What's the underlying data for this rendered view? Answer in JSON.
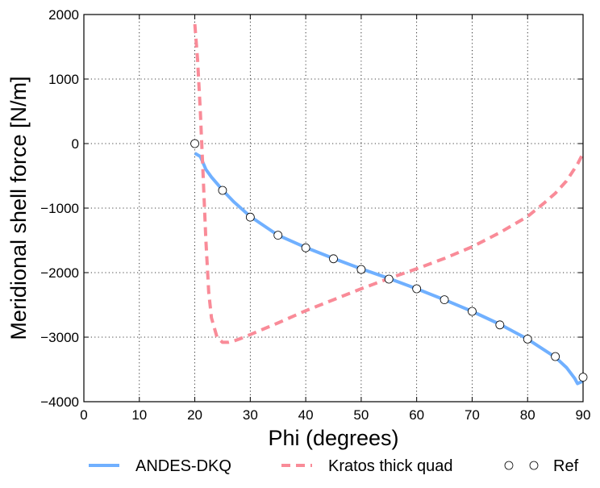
{
  "chart_data": {
    "type": "line",
    "xlabel": "Phi (degrees)",
    "ylabel": "Meridional shell force [N/m]",
    "xlim": [
      0,
      90
    ],
    "ylim": [
      -4000,
      2000
    ],
    "x_ticks": [
      0,
      10,
      20,
      30,
      40,
      50,
      60,
      70,
      80,
      90
    ],
    "y_ticks": [
      -4000,
      -3000,
      -2000,
      -1000,
      0,
      1000,
      2000
    ],
    "x_tick_labels": [
      "0",
      "10",
      "20",
      "30",
      "40",
      "50",
      "60",
      "70",
      "80",
      "90"
    ],
    "y_tick_labels": [
      "−4000",
      "−3000",
      "−2000",
      "−1000",
      "0",
      "1000",
      "2000"
    ],
    "grid": true,
    "legend_position": "bottom",
    "series": [
      {
        "name": "ANDES-DKQ",
        "style": "solid",
        "color": "#70b0ff",
        "x": [
          20,
          21,
          22,
          23,
          24,
          25,
          27,
          30,
          35,
          40,
          45,
          50,
          55,
          60,
          65,
          70,
          75,
          80,
          85,
          87,
          88.5,
          89,
          90
        ],
        "y": [
          -150,
          -200,
          -400,
          -520,
          -620,
          -720,
          -900,
          -1130,
          -1420,
          -1610,
          -1780,
          -1940,
          -2090,
          -2250,
          -2420,
          -2600,
          -2800,
          -3030,
          -3310,
          -3470,
          -3640,
          -3720,
          -3680
        ]
      },
      {
        "name": "Kratos thick quad",
        "style": "dashed",
        "color": "#f98b98",
        "x": [
          20,
          20.5,
          21,
          21.5,
          22,
          22.5,
          23,
          24,
          25,
          26,
          27,
          28,
          30,
          35,
          40,
          45,
          50,
          55,
          60,
          65,
          70,
          75,
          80,
          83,
          85,
          87,
          89,
          90
        ],
        "y": [
          1850,
          1300,
          500,
          -500,
          -1500,
          -2300,
          -2700,
          -3000,
          -3080,
          -3080,
          -3060,
          -3030,
          -2960,
          -2780,
          -2590,
          -2420,
          -2250,
          -2090,
          -1940,
          -1780,
          -1600,
          -1380,
          -1130,
          -920,
          -770,
          -580,
          -320,
          -150
        ]
      },
      {
        "name": "Ref",
        "style": "markers",
        "color": "#000000",
        "x": [
          20,
          25,
          30,
          35,
          40,
          45,
          50,
          55,
          60,
          65,
          70,
          75,
          80,
          85,
          90
        ],
        "y": [
          0,
          -725,
          -1140,
          -1420,
          -1615,
          -1785,
          -1950,
          -2100,
          -2250,
          -2420,
          -2600,
          -2810,
          -3030,
          -3300,
          -3620
        ]
      }
    ]
  }
}
